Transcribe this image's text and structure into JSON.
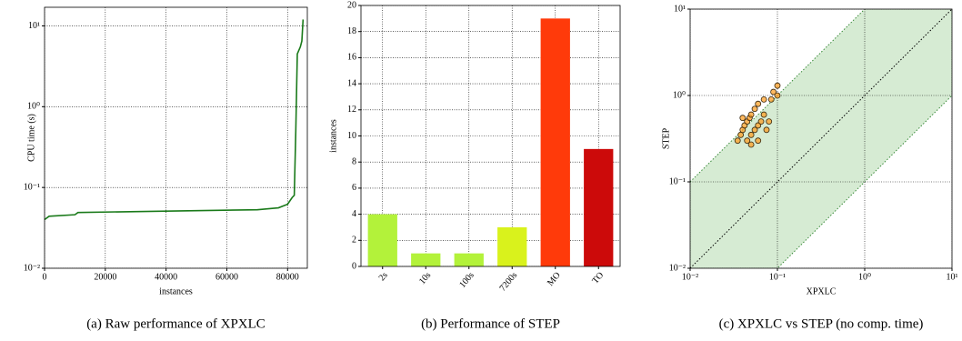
{
  "chart_data": [
    {
      "type": "line",
      "caption": "(a) Raw performance of XPXLC",
      "xlabel": "instances",
      "ylabel": "CPU time (s)",
      "x": [
        0,
        1500,
        10000,
        11000,
        40000,
        70000,
        77000,
        80000,
        81500,
        82200,
        82700,
        83200,
        84200,
        84700,
        85100
      ],
      "values": [
        0.04,
        0.044,
        0.046,
        0.049,
        0.051,
        0.053,
        0.056,
        0.062,
        0.075,
        0.08,
        0.5,
        4.5,
        5.5,
        6.5,
        12
      ],
      "color": "#1a7a1a",
      "xlim": [
        0,
        86500
      ],
      "xticks": [
        0,
        20000,
        40000,
        60000,
        80000
      ],
      "ylim": [
        0.01,
        17
      ],
      "ylog": true,
      "yticks": [
        {
          "value": 0.01,
          "label": "10⁻²"
        },
        {
          "value": 0.1,
          "label": "10⁻¹"
        },
        {
          "value": 1,
          "label": "10⁰"
        },
        {
          "value": 10,
          "label": "10¹"
        }
      ],
      "grid": true
    },
    {
      "type": "bar",
      "caption": "(b) Performance of STEP",
      "ylabel": "instances",
      "categories": [
        "2s",
        "10s",
        "100s",
        "7200s",
        "MO",
        "TO"
      ],
      "values": [
        4,
        1,
        1,
        3,
        19,
        9
      ],
      "colors": [
        "#b3f23a",
        "#b3f23a",
        "#b3f23a",
        "#d9f21c",
        "#ff3a0a",
        "#cc0a0a"
      ],
      "ylim": [
        0,
        20
      ],
      "yticks": [
        0,
        2,
        4,
        6,
        8,
        10,
        12,
        14,
        16,
        18,
        20
      ],
      "grid": true
    },
    {
      "type": "scatter",
      "caption": "(c) XPXLC vs STEP (no comp. time)",
      "xlabel": "XPXLC",
      "ylabel": "STEP",
      "x": [
        0.035,
        0.038,
        0.04,
        0.042,
        0.045,
        0.048,
        0.05,
        0.055,
        0.06,
        0.07,
        0.09,
        0.1,
        0.045,
        0.05,
        0.055,
        0.06,
        0.065,
        0.07,
        0.08,
        0.05,
        0.04,
        0.06,
        0.075,
        0.085,
        0.1
      ],
      "values": [
        0.3,
        0.35,
        0.4,
        0.45,
        0.5,
        0.55,
        0.6,
        0.7,
        0.8,
        0.9,
        1.1,
        1.3,
        0.3,
        0.35,
        0.4,
        0.45,
        0.5,
        0.6,
        0.5,
        0.27,
        0.55,
        0.3,
        0.4,
        0.9,
        1.0
      ],
      "color": "#ff9a1a",
      "band_color": "#d6ebd3",
      "xlim": [
        0.01,
        10
      ],
      "ylim": [
        0.01,
        10
      ],
      "xlog": true,
      "ylog": true,
      "xticks": [
        {
          "value": 0.01,
          "label": "10⁻²"
        },
        {
          "value": 0.1,
          "label": "10⁻¹"
        },
        {
          "value": 1,
          "label": "10⁰"
        },
        {
          "value": 10,
          "label": "10¹"
        }
      ],
      "yticks": [
        {
          "value": 0.01,
          "label": "10⁻²"
        },
        {
          "value": 0.1,
          "label": "10⁻¹"
        },
        {
          "value": 1,
          "label": "10⁰"
        },
        {
          "value": 10,
          "label": "10¹"
        }
      ],
      "grid": true
    }
  ]
}
